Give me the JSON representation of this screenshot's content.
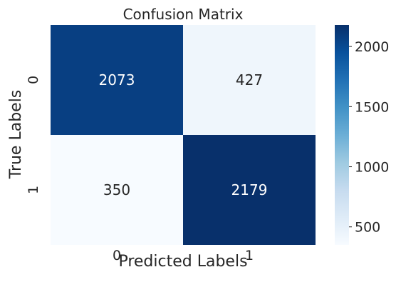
{
  "chart_data": {
    "type": "heatmap",
    "title": "Confusion Matrix",
    "xlabel": "Predicted Labels",
    "ylabel": "True Labels",
    "x_categories": [
      "0",
      "1"
    ],
    "y_categories": [
      "0",
      "1"
    ],
    "values": [
      [
        2073,
        427
      ],
      [
        350,
        2179
      ]
    ],
    "colorbar": {
      "min": 350,
      "max": 2179,
      "ticks": [
        "500",
        "1000",
        "1500",
        "2000"
      ],
      "colormap": "Blues",
      "colors": [
        "#f7fbff",
        "#deebf7",
        "#c6dbef",
        "#9ecae1",
        "#6baed6",
        "#4292c6",
        "#2171b5",
        "#08519c",
        "#08306b"
      ]
    },
    "grid": false,
    "legend": "colorbar-right"
  }
}
